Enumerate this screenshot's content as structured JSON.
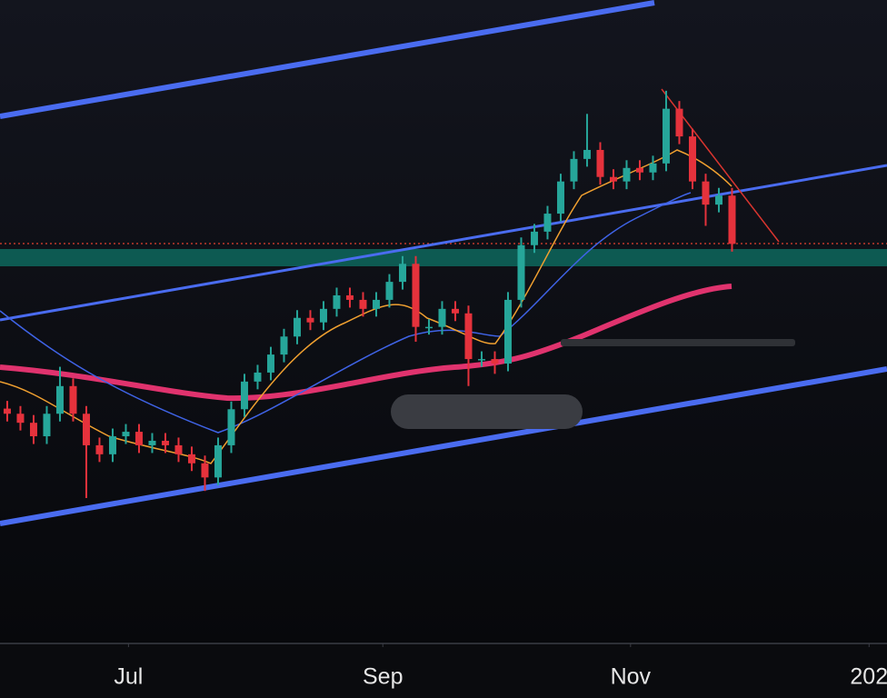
{
  "chart_data": {
    "type": "candlestick",
    "open": [
      36.5,
      35.7,
      34.3,
      32.2,
      35.7,
      40.0,
      35.7,
      30.8,
      29.4,
      32.2,
      32.9,
      30.8,
      31.5,
      30.8,
      29.4,
      28.0,
      25.8,
      30.8,
      36.4,
      40.7,
      42.1,
      44.9,
      47.7,
      50.6,
      49.9,
      52.0,
      54.1,
      53.4,
      52.0,
      53.4,
      56.2,
      59.0,
      49.2,
      49.2,
      52.0,
      51.3,
      44.2,
      44.2,
      43.5,
      53.4,
      61.9,
      64.0,
      66.8,
      71.8,
      75.3,
      76.7,
      72.5,
      71.8,
      73.9,
      73.2,
      74.6,
      83.1,
      78.8,
      71.8,
      68.2,
      69.6
    ],
    "high": [
      37.7,
      36.9,
      35.5,
      36.9,
      43.0,
      41.2,
      36.9,
      32.0,
      33.4,
      34.1,
      34.1,
      32.7,
      32.7,
      32.0,
      30.6,
      29.2,
      32.0,
      37.6,
      41.9,
      43.3,
      46.1,
      48.9,
      51.8,
      51.8,
      53.2,
      55.3,
      55.3,
      54.6,
      54.6,
      57.4,
      60.2,
      60.2,
      50.4,
      53.2,
      53.2,
      52.5,
      45.4,
      45.4,
      54.6,
      63.1,
      65.2,
      68.0,
      73.0,
      76.5,
      82.3,
      77.9,
      73.7,
      75.1,
      75.1,
      75.8,
      85.9,
      84.3,
      80.0,
      73.0,
      70.8,
      70.8
    ],
    "low": [
      34.5,
      33.1,
      31.0,
      31.0,
      34.5,
      34.5,
      22.6,
      28.2,
      28.2,
      31.0,
      29.6,
      29.6,
      29.6,
      28.2,
      26.8,
      23.7,
      24.6,
      29.6,
      35.2,
      39.5,
      40.9,
      43.7,
      46.5,
      48.7,
      48.7,
      50.8,
      52.2,
      50.8,
      50.8,
      52.2,
      55.0,
      46.9,
      48.0,
      48.0,
      50.1,
      40.0,
      43.0,
      41.9,
      42.3,
      52.2,
      60.7,
      62.8,
      65.6,
      70.6,
      74.1,
      71.3,
      70.6,
      70.6,
      72.0,
      72.0,
      73.4,
      77.6,
      70.6,
      64.9,
      67.0,
      60.9
    ],
    "close": [
      35.7,
      34.3,
      32.2,
      35.7,
      40.0,
      35.7,
      30.8,
      29.4,
      32.2,
      32.9,
      30.8,
      31.5,
      30.8,
      29.4,
      28.0,
      25.8,
      30.8,
      36.4,
      40.7,
      42.1,
      44.9,
      47.7,
      50.6,
      49.9,
      52.0,
      54.1,
      53.4,
      52.0,
      53.4,
      56.2,
      59.0,
      49.2,
      49.2,
      52.0,
      51.3,
      44.2,
      44.2,
      43.5,
      53.4,
      61.9,
      64.0,
      66.8,
      71.8,
      75.3,
      76.7,
      72.5,
      71.8,
      73.9,
      73.2,
      74.6,
      83.1,
      78.8,
      71.8,
      68.2,
      69.6,
      62.1
    ],
    "up_color": "#26a69a",
    "down_color": "#e5323c",
    "ylim": [
      0,
      100
    ],
    "xlim": [
      -0.55,
      66.76
    ],
    "xticks": [
      {
        "value": 9.2,
        "label": "Jul"
      },
      {
        "value": 28.5,
        "label": "Sep"
      },
      {
        "value": 47.3,
        "label": "Nov"
      },
      {
        "value": 65.4,
        "label": "202"
      }
    ]
  }
}
